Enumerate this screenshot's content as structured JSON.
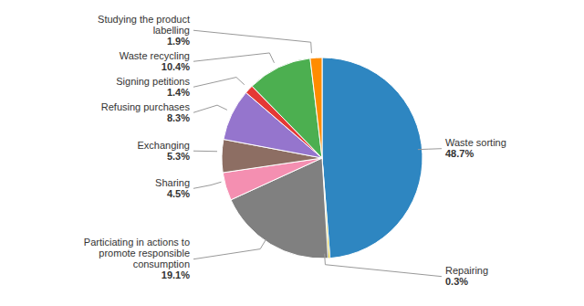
{
  "chart_data": {
    "type": "pie",
    "categories": [
      "Waste sorting",
      "Repairing",
      "Particiating in actions to\npromote responsible\nconsumption",
      "Sharing",
      "Exchanging",
      "Refusing purchases",
      "Signing petitions",
      "Waste recycling",
      "Studying the product\nlabelling"
    ],
    "values": [
      48.7,
      0.3,
      19.1,
      4.5,
      5.3,
      8.3,
      1.4,
      10.4,
      1.9
    ],
    "value_labels": [
      "48.7%",
      "0.3%",
      "19.1%",
      "4.5%",
      "5.3%",
      "8.3%",
      "1.4%",
      "10.4%",
      "1.9%"
    ],
    "colors": [
      "#2e86c1",
      "#c8b400",
      "#808080",
      "#f48fb1",
      "#8d6e63",
      "#9575cd",
      "#e53935",
      "#4caf50",
      "#ff8c00"
    ],
    "data_labels": true
  }
}
